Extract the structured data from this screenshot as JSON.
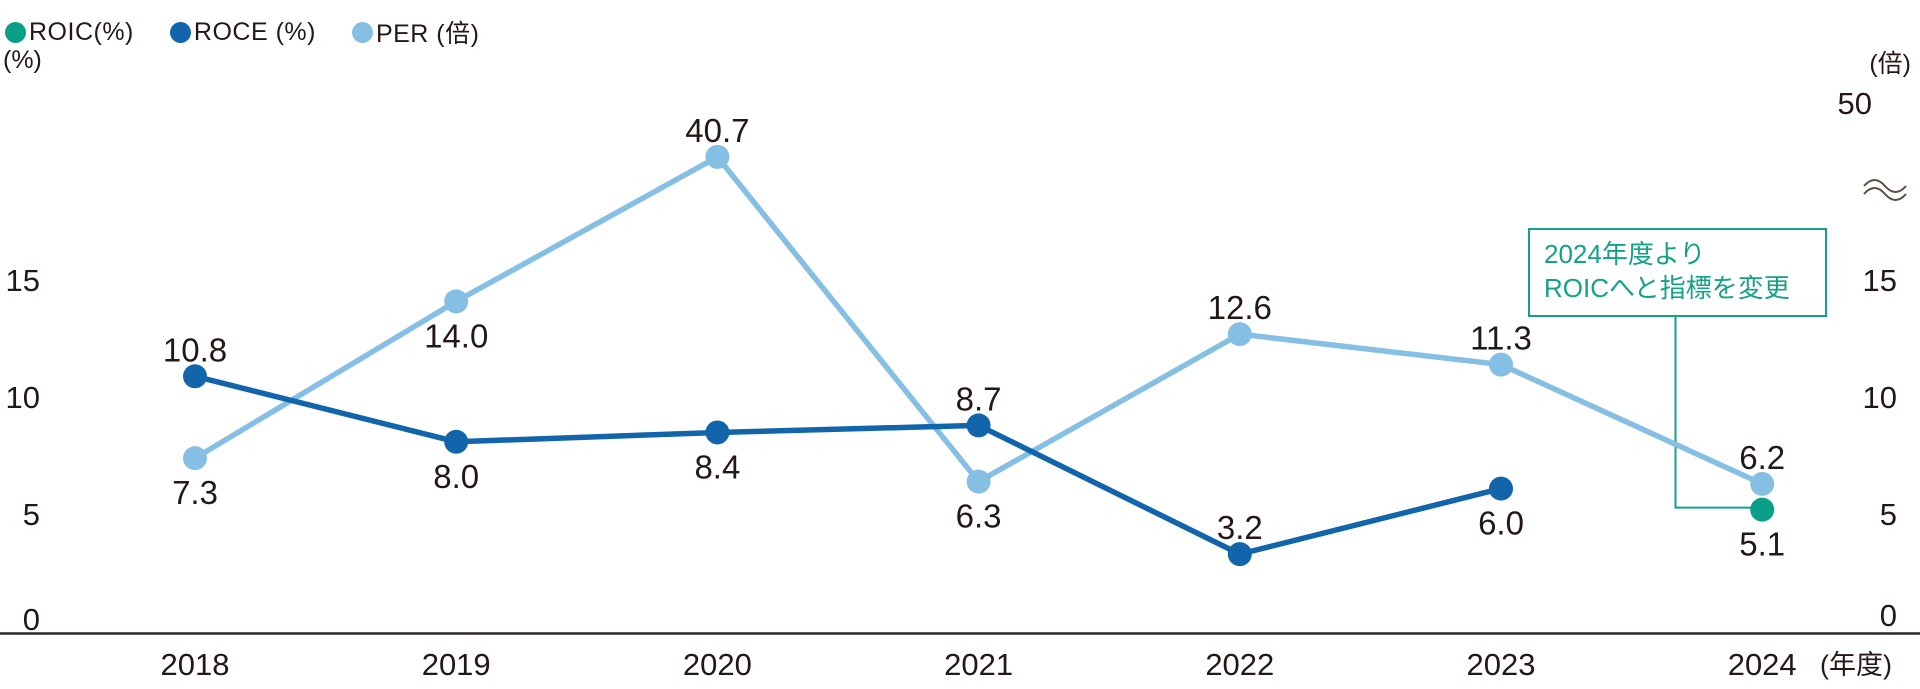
{
  "chart_data": {
    "type": "line",
    "title": "",
    "categories": [
      "2018",
      "2019",
      "2020",
      "2021",
      "2022",
      "2023",
      "2024"
    ],
    "x_axis_unit": "(年度)",
    "left_axis": {
      "unit": "(%)",
      "ticks": [
        0,
        5,
        10,
        15
      ]
    },
    "right_axis": {
      "unit": "(倍)",
      "ticks": [
        0,
        5,
        10,
        15
      ],
      "broken_top_tick": 50,
      "axis_break": true
    },
    "series": [
      {
        "key": "roic",
        "name": "ROIC(%)",
        "color": "#0aa087",
        "values": [
          null,
          null,
          null,
          null,
          null,
          null,
          5.1
        ],
        "labels": [
          null,
          null,
          null,
          null,
          null,
          null,
          "5.1"
        ],
        "label_pos": [
          null,
          null,
          null,
          null,
          null,
          null,
          "below"
        ]
      },
      {
        "key": "roce",
        "name": "ROCE (%)",
        "color": "#1264ab",
        "values": [
          10.8,
          8.0,
          8.4,
          8.7,
          3.2,
          6.0,
          null
        ],
        "labels": [
          "10.8",
          "8.0",
          "8.4",
          "8.7",
          "3.2",
          "6.0",
          null
        ],
        "label_pos": [
          "above",
          "below",
          "below",
          "above",
          "above",
          "below",
          null
        ]
      },
      {
        "key": "per",
        "name": "PER (倍)",
        "color": "#85bfe4",
        "values": [
          7.3,
          14.0,
          40.7,
          6.3,
          12.6,
          11.3,
          6.2
        ],
        "labels": [
          "7.3",
          "14.0",
          "40.7",
          "6.3",
          "12.6",
          "11.3",
          "6.2"
        ],
        "label_pos": [
          "below",
          "below",
          "above",
          "below",
          "above",
          "above",
          "above"
        ]
      }
    ],
    "annotation": {
      "line1": "2024年度より",
      "line2": "ROICへと指標を変更",
      "color": "#14a287"
    },
    "colors": {
      "text": "#231815",
      "axis": "#2b2622",
      "break_mark": "#5a4f45"
    },
    "legend_position": "top-left",
    "grid": false
  }
}
